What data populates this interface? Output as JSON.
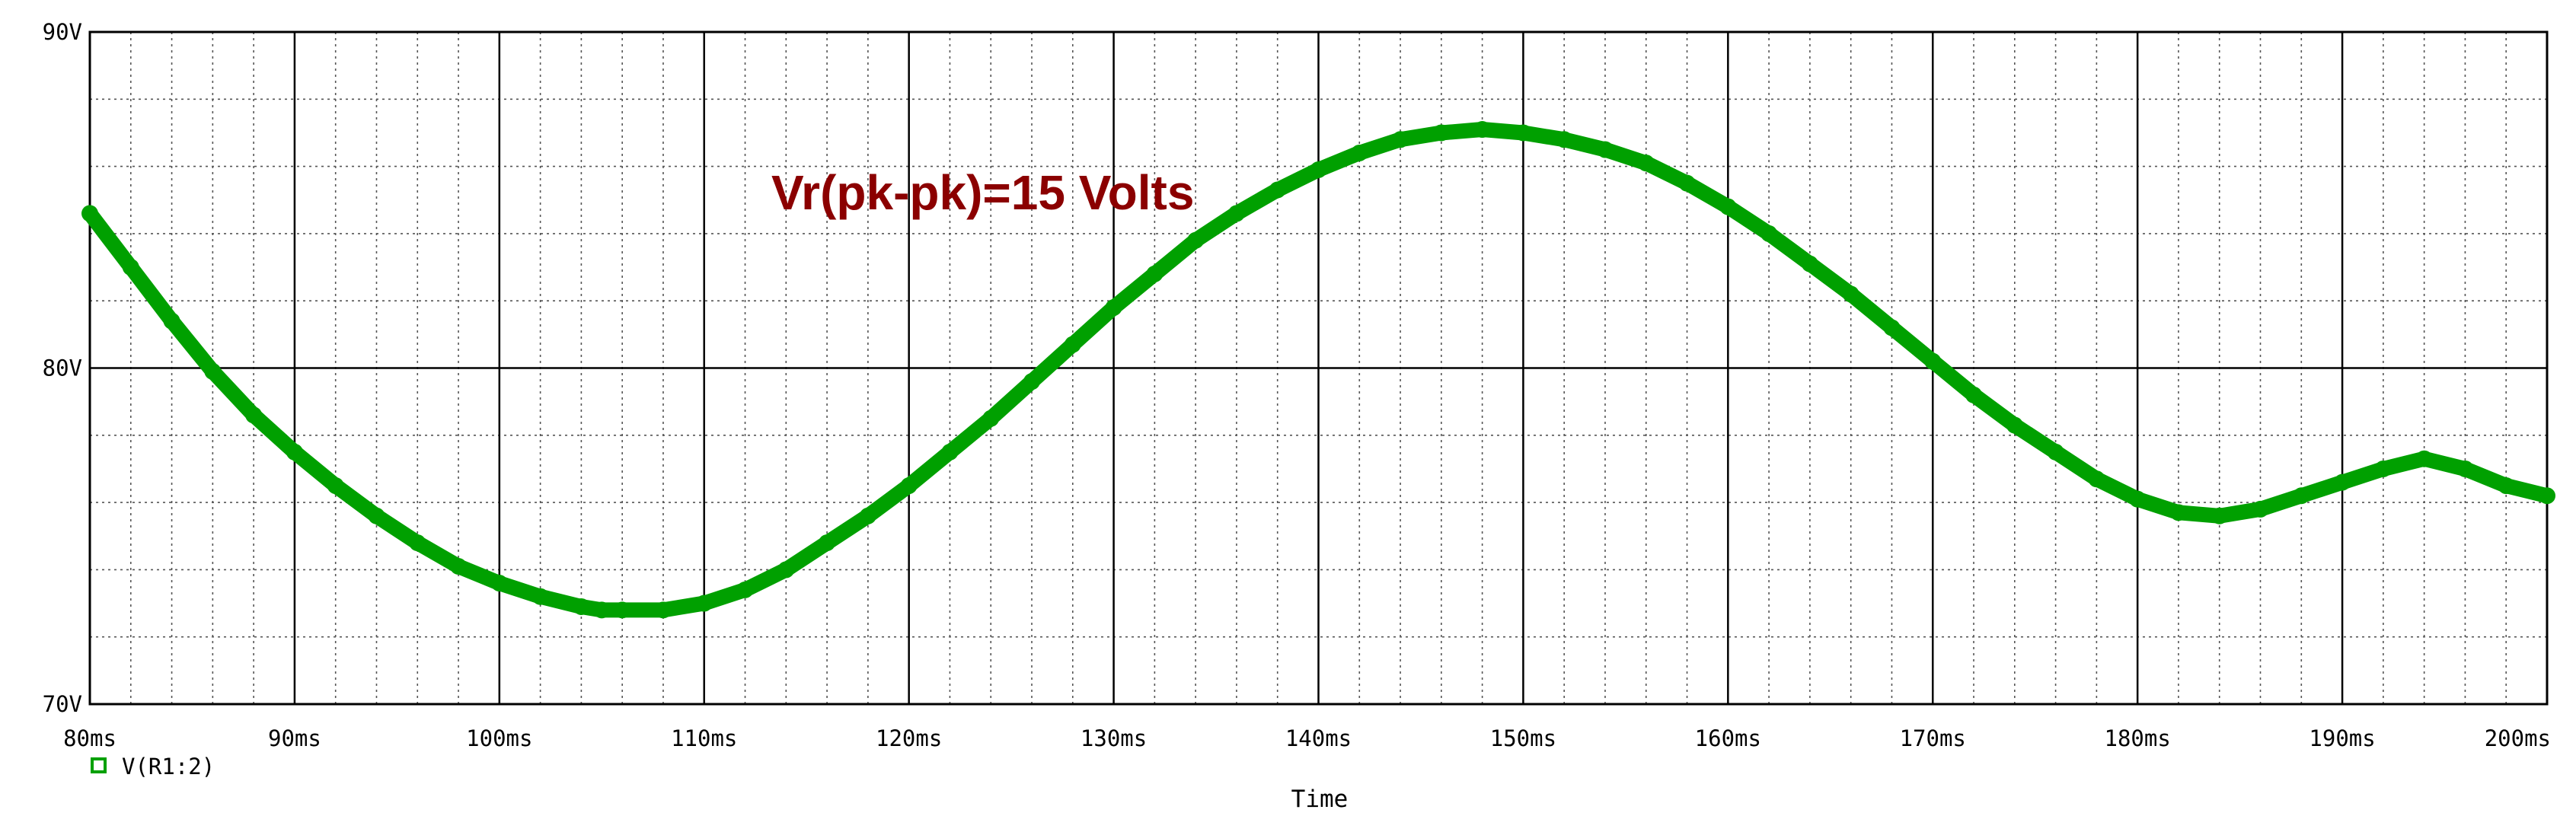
{
  "chart_data": {
    "type": "line",
    "title": "",
    "xlabel": "Time",
    "ylabel": "",
    "xlim": [
      80,
      200
    ],
    "ylim": [
      70,
      90
    ],
    "x_unit": "ms",
    "y_unit": "V",
    "x_ticks": [
      "80ms",
      "90ms",
      "100ms",
      "110ms",
      "120ms",
      "130ms",
      "140ms",
      "150ms",
      "160ms",
      "170ms",
      "180ms",
      "190ms",
      "200ms"
    ],
    "y_ticks": [
      "90V",
      "80V",
      "70V"
    ],
    "grid": true,
    "legend_position": "bottom-left",
    "annotation": "Vr(pk-pk)=15 Volts",
    "series": [
      {
        "name": "V(R1:2)",
        "color": "#00a000",
        "marker_icon": "square-outline-icon",
        "x": [
          80,
          82,
          84,
          86,
          88,
          90,
          92,
          94,
          96,
          98,
          100,
          102,
          104,
          105,
          106,
          108,
          110,
          112,
          114,
          116,
          118,
          120,
          122,
          124,
          126,
          128,
          130,
          132,
          134,
          136,
          138,
          140,
          142,
          144,
          146,
          148,
          150,
          152,
          154,
          156,
          158,
          160,
          162,
          164,
          166,
          168,
          170,
          172,
          174,
          176,
          178,
          180,
          182,
          184,
          186,
          188,
          190,
          192,
          194,
          196,
          198,
          200
        ],
        "y": [
          84.6,
          83.0,
          81.4,
          79.9,
          78.6,
          77.5,
          76.5,
          75.6,
          74.8,
          74.1,
          73.6,
          73.2,
          72.9,
          72.8,
          72.8,
          72.8,
          73.0,
          73.4,
          74.0,
          74.8,
          75.6,
          76.5,
          77.5,
          78.5,
          79.6,
          80.7,
          81.8,
          82.8,
          83.8,
          84.6,
          85.3,
          85.9,
          86.4,
          86.8,
          87.0,
          87.1,
          87.0,
          86.8,
          86.5,
          86.1,
          85.5,
          84.8,
          84.0,
          83.1,
          82.2,
          81.2,
          80.2,
          79.2,
          78.3,
          77.5,
          76.7,
          76.1,
          75.7,
          75.6,
          75.8,
          76.2,
          76.6,
          77.0,
          77.3,
          77.0,
          76.5,
          76.2
        ]
      }
    ]
  }
}
